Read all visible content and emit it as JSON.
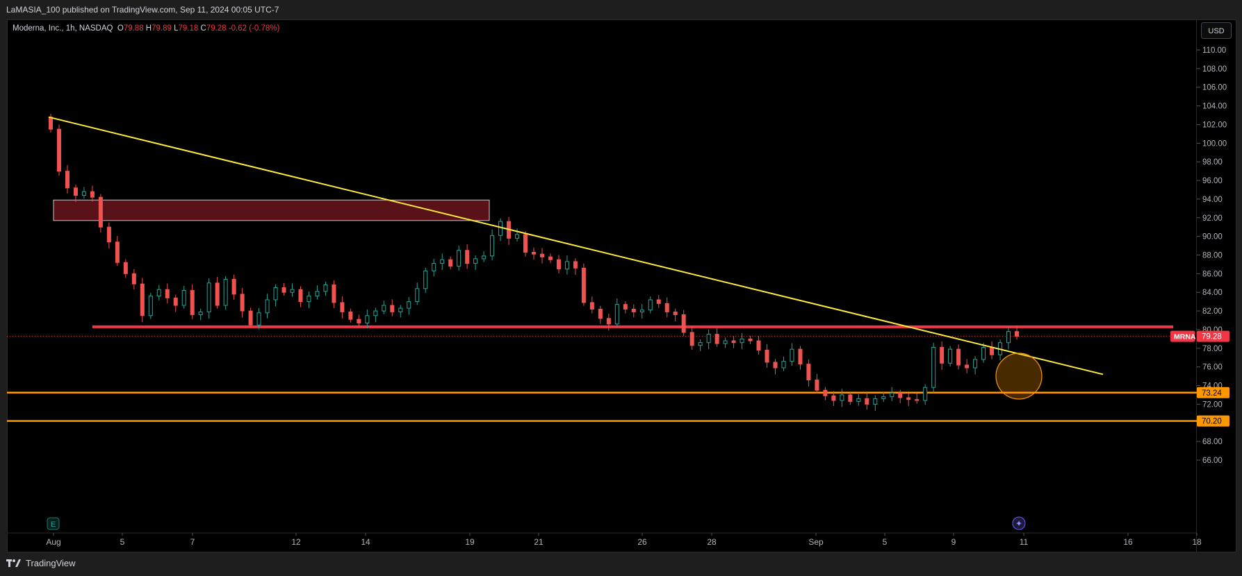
{
  "header": {
    "published": "LaMASIA_100 published on TradingView.com, Sep 11, 2024 00:05 UTC-7"
  },
  "legend": {
    "symbol": "Moderna, Inc., 1h, NASDAQ",
    "open_label": "O",
    "open": "79.88",
    "high_label": "H",
    "high": "79.89",
    "low_label": "L",
    "low": "79.18",
    "close_label": "C",
    "close": "79.28",
    "change": "-0.62 (-0.78%)"
  },
  "currency": "USD",
  "price_axis": {
    "ticks": [
      "110.00",
      "108.00",
      "106.00",
      "104.00",
      "102.00",
      "100.00",
      "98.00",
      "96.00",
      "94.00",
      "92.00",
      "90.00",
      "88.00",
      "86.00",
      "84.00",
      "82.00",
      "80.00",
      "78.00",
      "76.00",
      "74.00",
      "72.00",
      "70.00",
      "68.00",
      "66.00"
    ],
    "symbol_tag": "MRNA",
    "last_price": "79.28",
    "level_tags": [
      "73.24",
      "70.20"
    ]
  },
  "time_axis": {
    "labels": [
      "Aug",
      "5",
      "7",
      "12",
      "14",
      "19",
      "21",
      "26",
      "28",
      "Sep",
      "5",
      "9",
      "11",
      "16",
      "18"
    ]
  },
  "footer": {
    "brand": "TradingView"
  },
  "colors": {
    "up": "#26a69a",
    "down": "#ef5350",
    "trendline": "#ffeb3b",
    "resistance": "#f23645",
    "support": "#ff9800",
    "zone": "#5a1219"
  },
  "chart_data": {
    "type": "candlestick",
    "symbol": "MRNA",
    "interval": "1h",
    "y_range": [
      65,
      111
    ],
    "last_close": 79.28,
    "horizontal_levels": [
      80.3,
      73.24,
      70.2
    ],
    "trendline": {
      "from": [
        "Aug 1",
        102.8
      ],
      "to": [
        "Sep 14",
        75.2
      ]
    },
    "supply_zone": {
      "from": "Aug 1",
      "to": "Aug 20",
      "low": 91.7,
      "high": 93.9
    },
    "closes": [
      101.5,
      97.0,
      95.2,
      94.4,
      94.8,
      94.2,
      91.0,
      89.4,
      87.2,
      86.0,
      84.9,
      81.5,
      83.6,
      84.3,
      83.4,
      82.6,
      84.2,
      81.6,
      81.9,
      85.0,
      82.6,
      85.4,
      83.8,
      82.0,
      80.5,
      81.8,
      83.2,
      84.5,
      84.0,
      84.3,
      83.0,
      83.6,
      84.1,
      84.8,
      82.9,
      81.9,
      81.1,
      80.7,
      81.5,
      82.0,
      82.6,
      81.9,
      82.3,
      83.0,
      84.4,
      86.3,
      87.1,
      87.5,
      86.8,
      88.5,
      87.1,
      87.6,
      87.9,
      90.1,
      91.6,
      89.8,
      90.2,
      88.3,
      88.1,
      87.8,
      87.5,
      86.5,
      87.3,
      86.6,
      82.9,
      82.2,
      81.2,
      80.6,
      82.7,
      82.2,
      81.9,
      82.1,
      83.2,
      82.8,
      81.9,
      81.6,
      79.7,
      78.3,
      78.6,
      79.5,
      78.5,
      78.8,
      78.6,
      79.0,
      78.8,
      77.8,
      76.5,
      75.9,
      76.6,
      77.9,
      76.3,
      74.6,
      73.5,
      72.9,
      72.4,
      73.0,
      72.3,
      72.6,
      72.0,
      72.6,
      72.8,
      73.2,
      72.7,
      72.5,
      72.4,
      73.8,
      78.1,
      76.4,
      77.9,
      76.2,
      75.9,
      76.8,
      78.1,
      77.3,
      78.6,
      79.8,
      79.28
    ]
  }
}
